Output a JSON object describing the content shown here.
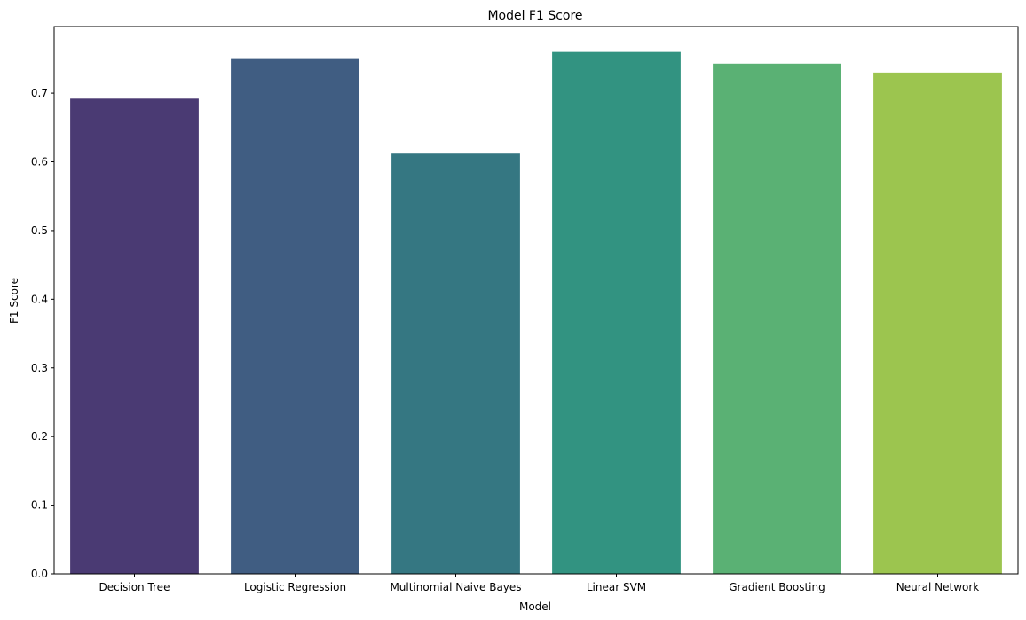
{
  "chart_data": {
    "type": "bar",
    "title": "Model F1 Score",
    "xlabel": "Model",
    "ylabel": "F1 Score",
    "categories": [
      "Decision Tree",
      "Logistic Regression",
      "Multinomial Naive Bayes",
      "Linear SVM",
      "Gradient Boosting",
      "Neural Network"
    ],
    "values": [
      0.692,
      0.751,
      0.612,
      0.76,
      0.743,
      0.73
    ],
    "colors": [
      "#4a3a73",
      "#405d82",
      "#357782",
      "#329381",
      "#5ab174",
      "#9cc54f"
    ],
    "ylim": [
      0,
      0.797
    ],
    "yticks": [
      "0.0",
      "0.1",
      "0.2",
      "0.3",
      "0.4",
      "0.5",
      "0.6",
      "0.7"
    ],
    "grid": false,
    "legend": "none"
  }
}
